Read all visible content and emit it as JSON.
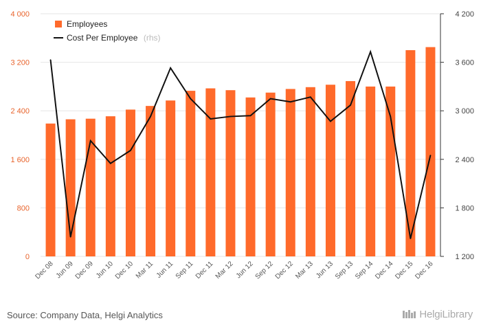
{
  "source_text": "Source: Company Data, Helgi Analytics",
  "brand_text": "HelgiLibrary",
  "chart_data": {
    "type": "bar+line",
    "categories": [
      "Dec 08",
      "Jun 09",
      "Dec 09",
      "Jun 10",
      "Dec 10",
      "Mar 11",
      "Jun 11",
      "Sep 11",
      "Dec 11",
      "Mar 12",
      "Jun 12",
      "Sep 12",
      "Dec 12",
      "Mar 13",
      "Jun 13",
      "Sep 13",
      "Sep 14",
      "Dec 14",
      "Dec 15",
      "Dec 16"
    ],
    "series": [
      {
        "name": "Employees",
        "type": "bar",
        "axis": "left",
        "color": "#ff6a2b",
        "values": [
          2190,
          2260,
          2270,
          2310,
          2420,
          2480,
          2570,
          2730,
          2770,
          2740,
          2620,
          2700,
          2760,
          2790,
          2830,
          2890,
          2800,
          2800,
          3400,
          3450
        ]
      },
      {
        "name": "Cost Per Employee",
        "legend_suffix": "(rhs)",
        "type": "line",
        "axis": "right",
        "color": "#111111",
        "values": [
          3630,
          1440,
          2630,
          2350,
          2510,
          2930,
          3530,
          3150,
          2900,
          2930,
          2940,
          3150,
          3110,
          3170,
          2870,
          3070,
          3730,
          2930,
          1420,
          2450
        ]
      }
    ],
    "y_left": {
      "min": 0,
      "max": 4000,
      "ticks": [
        0,
        800,
        1600,
        2400,
        3200,
        4000
      ],
      "tick_labels": [
        "0",
        "800",
        "1 600",
        "2 400",
        "3 200",
        "4 000"
      ]
    },
    "y_right": {
      "min": 1200,
      "max": 4200,
      "ticks": [
        1200,
        1800,
        2400,
        3000,
        3600,
        4200
      ],
      "tick_labels": [
        "1 200",
        "1 800",
        "2 400",
        "3 000",
        "3 600",
        "4 200"
      ]
    },
    "grid": true,
    "legend_position": "top-left"
  }
}
